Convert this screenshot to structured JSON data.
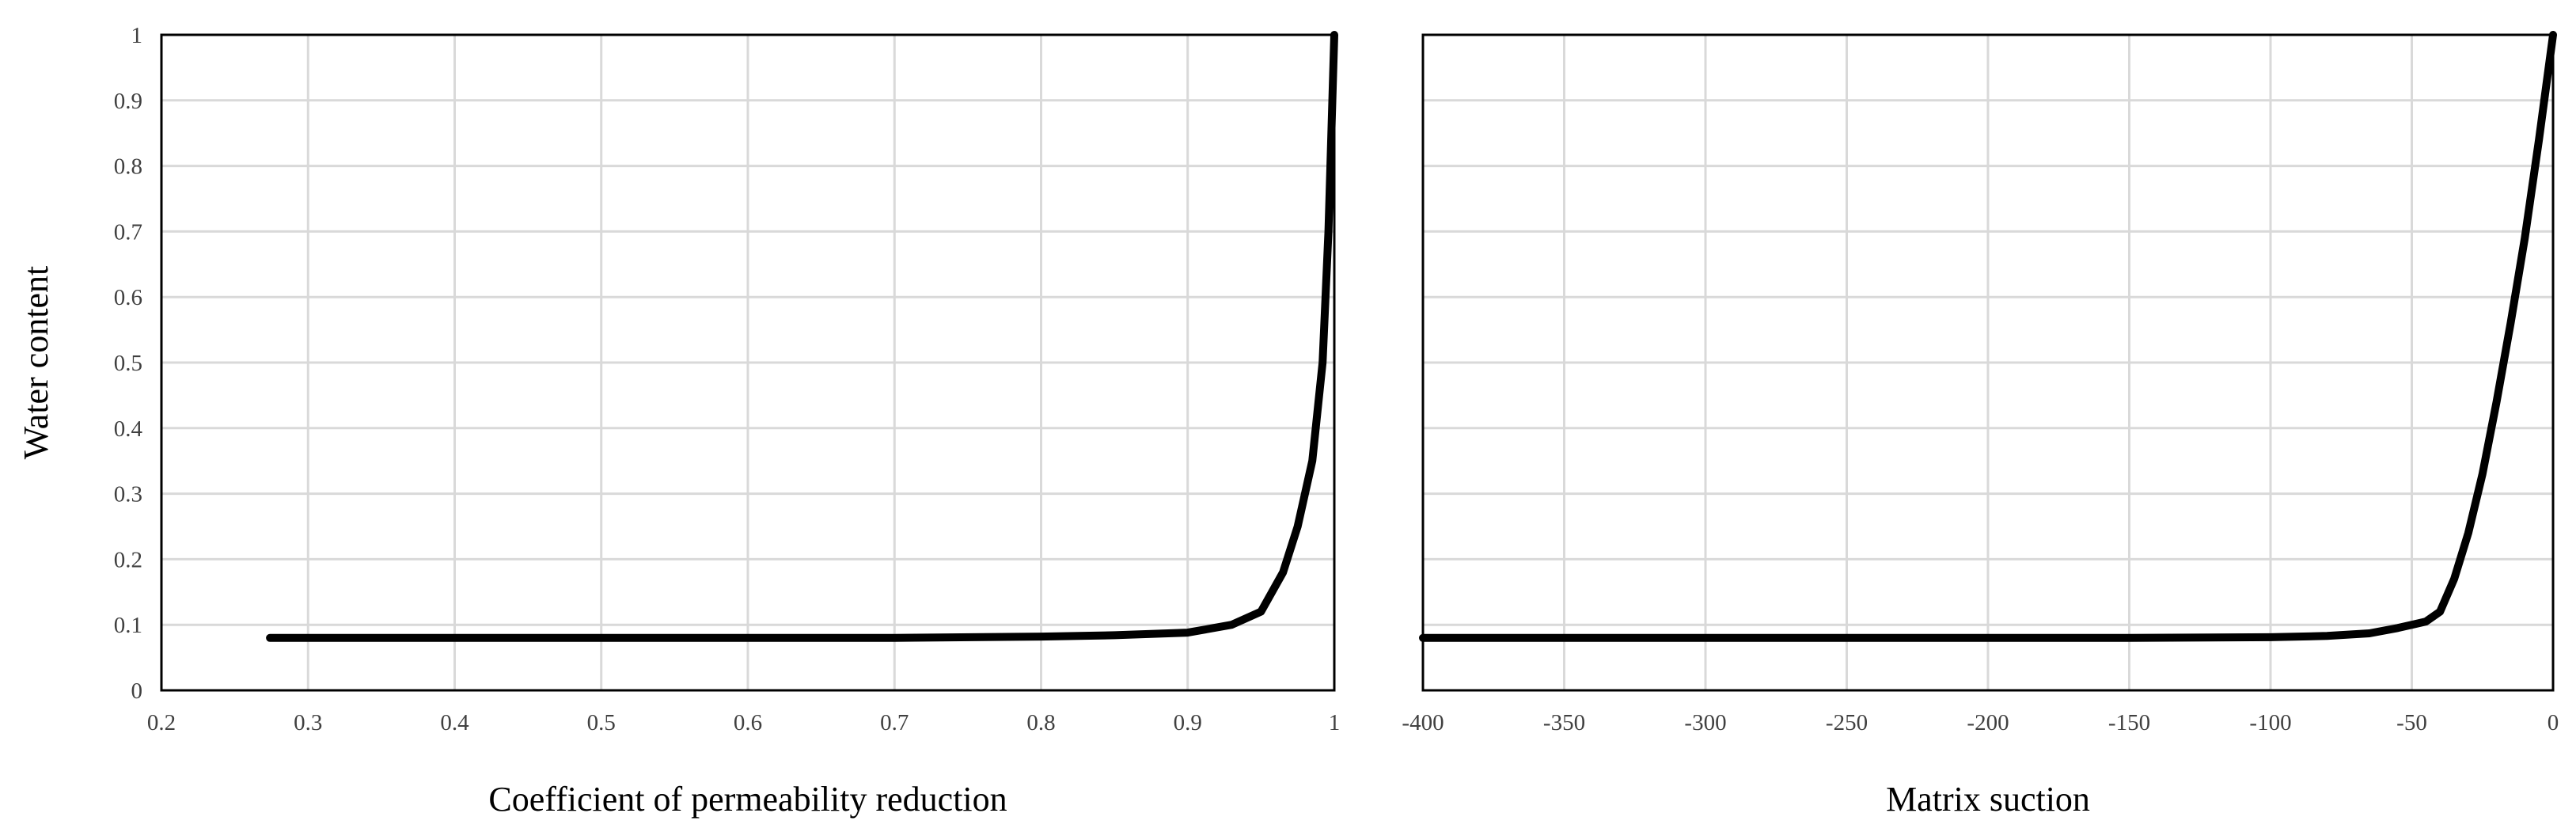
{
  "chart_data": [
    {
      "type": "line",
      "xlabel": "Coefficient of permeability reduction",
      "ylabel": "Water content",
      "xlim": [
        0.2,
        1
      ],
      "ylim": [
        0,
        1
      ],
      "xticks": [
        "0.2",
        "0.3",
        "0.4",
        "0.5",
        "0.6",
        "0.7",
        "0.8",
        "0.9",
        "1"
      ],
      "yticks": [
        "0",
        "0.1",
        "0.2",
        "0.3",
        "0.4",
        "0.5",
        "0.6",
        "0.7",
        "0.8",
        "0.9",
        "1"
      ],
      "grid": true,
      "series": [
        {
          "color": "#000000",
          "x": [
            0.274,
            0.4,
            0.5,
            0.6,
            0.7,
            0.8,
            0.85,
            0.9,
            0.93,
            0.95,
            0.965,
            0.975,
            0.985,
            0.992,
            0.996,
            1.0
          ],
          "y": [
            0.08,
            0.08,
            0.08,
            0.08,
            0.08,
            0.082,
            0.084,
            0.088,
            0.1,
            0.12,
            0.18,
            0.25,
            0.35,
            0.5,
            0.7,
            1.0
          ]
        }
      ]
    },
    {
      "type": "line",
      "xlabel": "Matrix suction",
      "ylabel": "",
      "xlim": [
        -400,
        0
      ],
      "ylim": [
        0,
        1
      ],
      "xticks": [
        "-400",
        "-350",
        "-300",
        "-250",
        "-200",
        "-150",
        "-100",
        "-50",
        "0"
      ],
      "grid": true,
      "series": [
        {
          "color": "#000000",
          "x": [
            -400,
            -300,
            -200,
            -150,
            -100,
            -80,
            -65,
            -55,
            -45,
            -40,
            -35,
            -30,
            -25,
            -20,
            -15,
            -10,
            -5,
            0
          ],
          "y": [
            0.08,
            0.08,
            0.08,
            0.08,
            0.081,
            0.083,
            0.087,
            0.095,
            0.105,
            0.12,
            0.17,
            0.24,
            0.33,
            0.44,
            0.56,
            0.69,
            0.84,
            1.0
          ]
        }
      ]
    }
  ]
}
